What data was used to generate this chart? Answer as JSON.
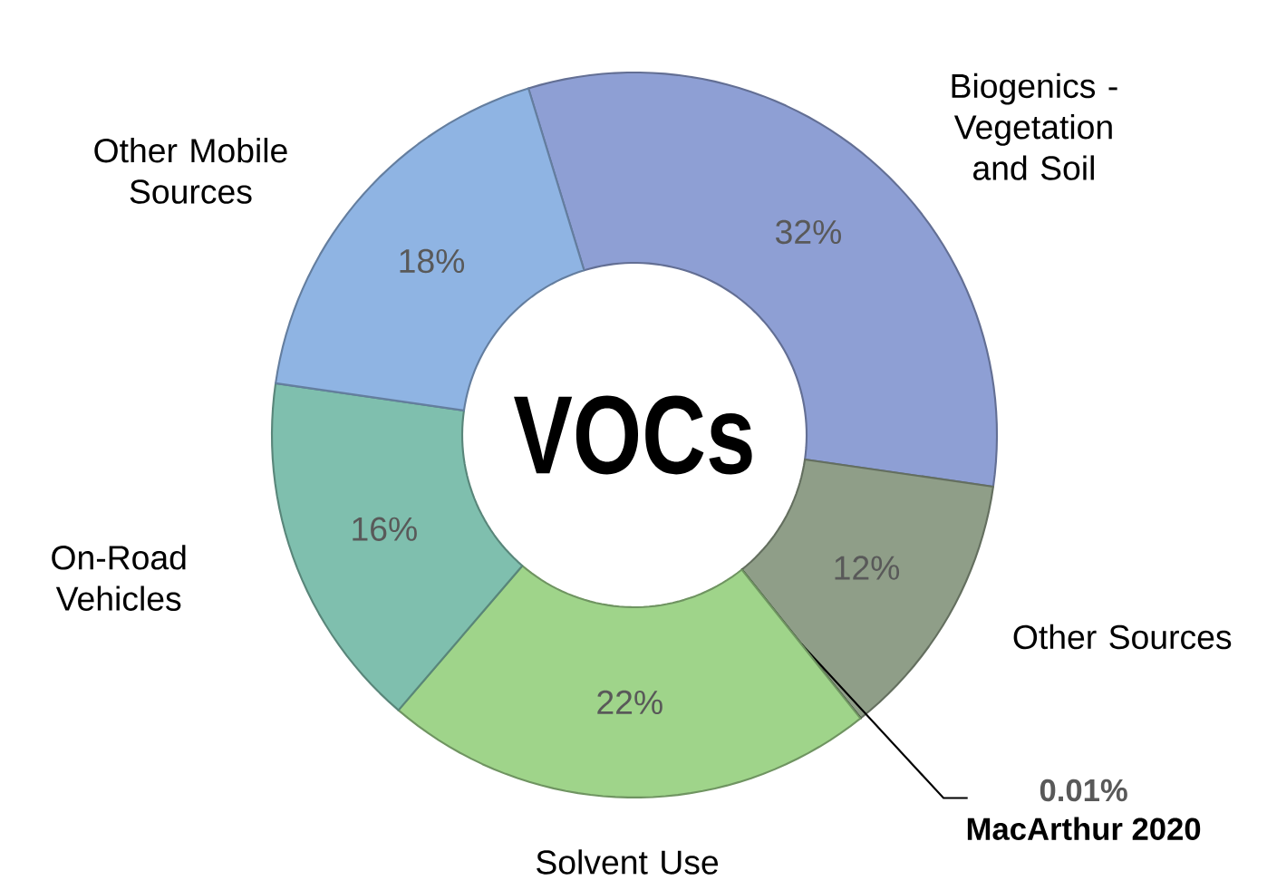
{
  "chart_data": {
    "type": "donut",
    "title": "VOCs",
    "categories": [
      "Biogenics - Vegetation and Soil",
      "Other Sources",
      "MacArthur 2020",
      "Solvent Use",
      "On-Road Vehicles",
      "Other Mobile Sources"
    ],
    "values": [
      32,
      12,
      0.01,
      22,
      16,
      18
    ],
    "value_labels": [
      "32%",
      "12%",
      "0.01%",
      "22%",
      "16%",
      "18%"
    ],
    "colors": [
      "#8e9fd4",
      "#8f9e88",
      "#404040",
      "#9fd48a",
      "#7fbfae",
      "#8fb4e3"
    ]
  }
}
